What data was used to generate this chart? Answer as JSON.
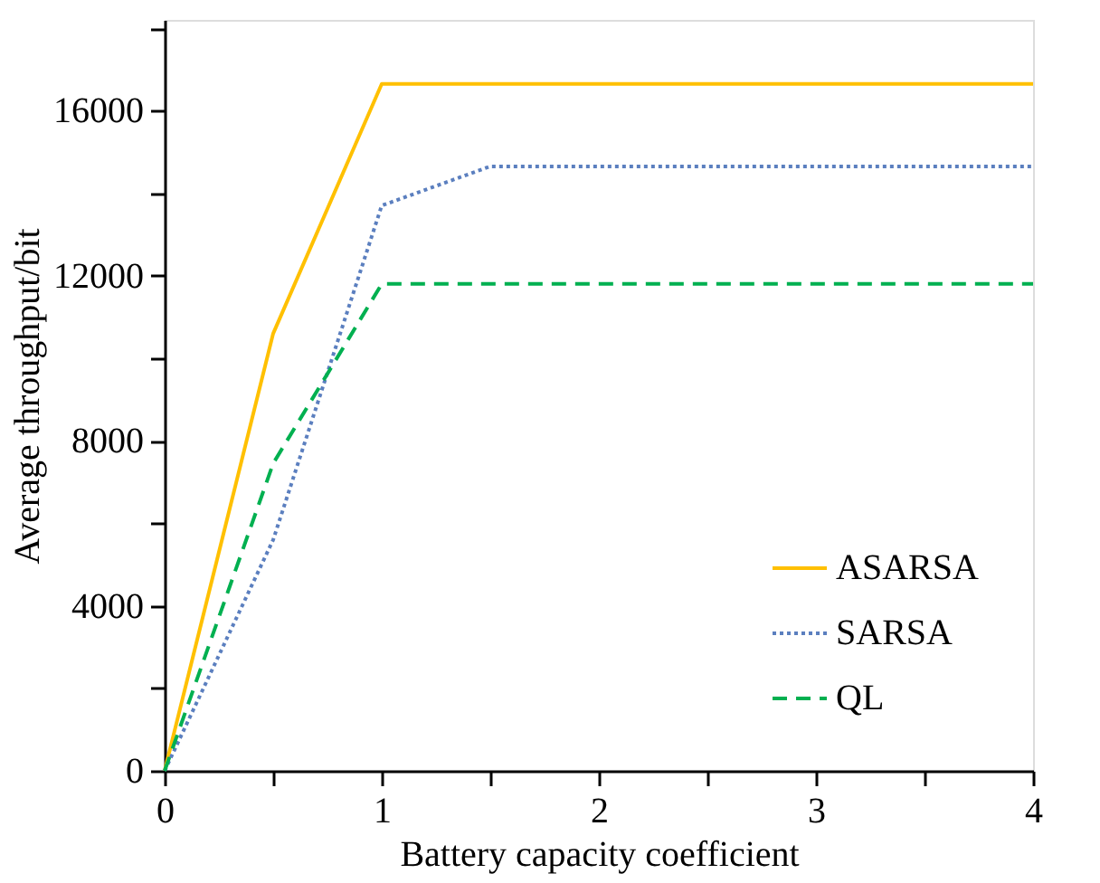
{
  "chart_data": {
    "type": "line",
    "xlabel": "Battery capacity coefficient",
    "ylabel": "Average throughput/bit",
    "x": [
      0,
      0.5,
      1,
      1.5,
      4
    ],
    "series": [
      {
        "name": "ASARSA",
        "color": "#ffc000",
        "line_style": "solid",
        "values": [
          0,
          10600,
          16650,
          16650,
          16650
        ]
      },
      {
        "name": "SARSA",
        "color": "#5b7fbf",
        "line_style": "dotted",
        "values": [
          0,
          5600,
          13700,
          14650,
          14650
        ]
      },
      {
        "name": "QL",
        "color": "#00b050",
        "line_style": "dashed",
        "values": [
          0,
          7450,
          11800,
          11800,
          11800
        ]
      }
    ],
    "xlim": [
      0,
      4
    ],
    "xticks": [
      0,
      {
        "value": 0.5,
        "label": null
      },
      1,
      {
        "value": 1.5,
        "label": null
      },
      2,
      {
        "value": 2.5,
        "label": null
      },
      3,
      {
        "value": 3.5,
        "label": null
      },
      4
    ],
    "ylim": [
      0,
      18200
    ],
    "yticks": [
      0,
      {
        "value": 2000,
        "label": null
      },
      4000,
      {
        "value": 6000,
        "label": null
      },
      8000,
      {
        "value": 10000,
        "label": null
      },
      12000,
      {
        "value": 14000,
        "label": null
      },
      16000,
      {
        "value": 18000,
        "label": null
      }
    ],
    "grid": false,
    "legend": "bottom right",
    "marker": "none"
  }
}
